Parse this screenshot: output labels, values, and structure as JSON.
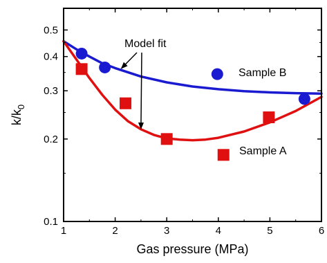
{
  "chart_data": {
    "type": "scatter",
    "xlabel": "Gas pressure (MPa)",
    "ylabel": "k/k",
    "ylabel_subscript": "0",
    "xlim": [
      1,
      6
    ],
    "ylim": [
      0.1,
      0.6
    ],
    "y_scale": "log",
    "grid": false,
    "x_ticks": [
      1,
      2,
      3,
      4,
      5,
      6
    ],
    "x_tick_labels": [
      "1",
      "2",
      "3",
      "4",
      "5",
      "6"
    ],
    "y_ticks": [
      0.1,
      0.2,
      0.3,
      0.4,
      0.5
    ],
    "y_tick_labels": [
      "0.1",
      "0.2",
      "0.3",
      "0.4",
      "0.5"
    ],
    "series": [
      {
        "name": "Sample B",
        "marker": "circle",
        "color": "#1a1ad0",
        "x": [
          1.35,
          1.8,
          3.98,
          5.67
        ],
        "y": [
          0.41,
          0.365,
          0.345,
          0.28
        ]
      },
      {
        "name": "Sample A",
        "marker": "square",
        "color": "#e01010",
        "x": [
          1.35,
          2.2,
          3.0,
          4.1,
          4.98
        ],
        "y": [
          0.36,
          0.27,
          0.2,
          0.175,
          0.24
        ]
      }
    ],
    "fits": [
      {
        "label": "Sample B",
        "color": "#1a1ad0",
        "x": [
          1.0,
          1.25,
          1.5,
          1.75,
          2.0,
          2.5,
          3.0,
          3.5,
          4.0,
          4.5,
          5.0,
          5.5,
          6.0
        ],
        "y": [
          0.455,
          0.425,
          0.4,
          0.378,
          0.363,
          0.338,
          0.322,
          0.311,
          0.304,
          0.299,
          0.296,
          0.294,
          0.293
        ]
      },
      {
        "label": "Sample A",
        "color": "#e01010",
        "x": [
          1.0,
          1.25,
          1.5,
          1.75,
          2.0,
          2.25,
          2.5,
          2.75,
          3.0,
          3.25,
          3.5,
          3.75,
          4.0,
          4.5,
          5.0,
          5.5,
          6.0
        ],
        "y": [
          0.455,
          0.39,
          0.334,
          0.29,
          0.256,
          0.232,
          0.217,
          0.207,
          0.201,
          0.199,
          0.198,
          0.199,
          0.202,
          0.213,
          0.23,
          0.253,
          0.285
        ]
      }
    ],
    "annotation": {
      "text": "Model fit",
      "arrows": [
        {
          "to_x": 2.12,
          "to_y": 0.362
        },
        {
          "to_x": 2.5,
          "to_y": 0.218
        }
      ]
    }
  }
}
